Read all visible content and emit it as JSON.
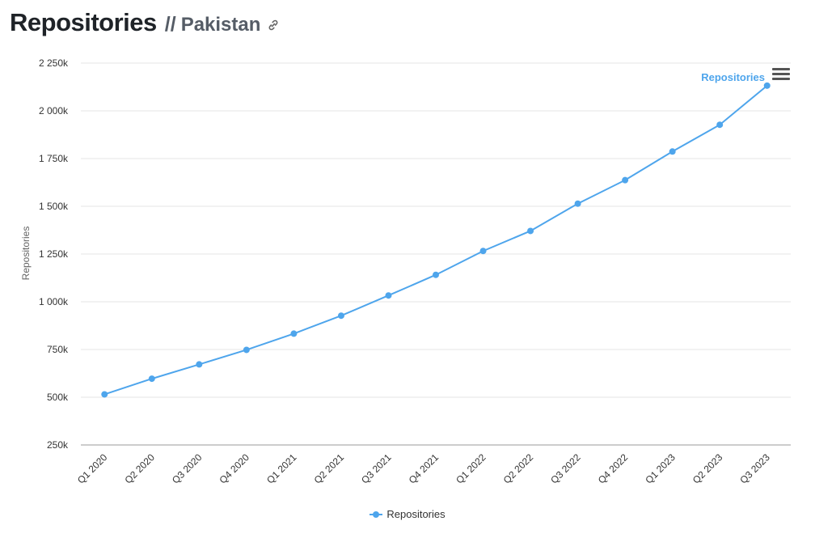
{
  "header": {
    "title": "Repositories",
    "separator": "//",
    "subtitle": "Pakistan",
    "link_icon": "link-icon"
  },
  "menu": {
    "icon": "hamburger-menu-icon"
  },
  "colors": {
    "series": "#4ea5ec",
    "grid": "#e6e6e6",
    "axis": "#999999"
  },
  "chart_data": {
    "type": "line",
    "title": "",
    "xlabel": "",
    "ylabel": "Repositories",
    "ylim": [
      250,
      2250
    ],
    "yticks": [
      250,
      500,
      750,
      1000,
      1250,
      1500,
      1750,
      2000,
      2250
    ],
    "ytick_labels": [
      "250k",
      "500k",
      "750k",
      "1 000k",
      "1 250k",
      "1 500k",
      "1 750k",
      "2 000k",
      "2 250k"
    ],
    "grid": true,
    "legend": "bottom-center",
    "categories": [
      "Q1 2020",
      "Q2 2020",
      "Q3 2020",
      "Q4 2020",
      "Q1 2021",
      "Q2 2021",
      "Q3 2021",
      "Q4 2021",
      "Q1 2022",
      "Q2 2022",
      "Q3 2022",
      "Q4 2022",
      "Q1 2023",
      "Q2 2023",
      "Q3 2023"
    ],
    "series": [
      {
        "name": "Repositories",
        "values": [
          515,
          597,
          672,
          748,
          833,
          927,
          1033,
          1141,
          1266,
          1371,
          1514,
          1637,
          1787,
          1927,
          2132
        ]
      }
    ],
    "end_label": "Repositories"
  }
}
